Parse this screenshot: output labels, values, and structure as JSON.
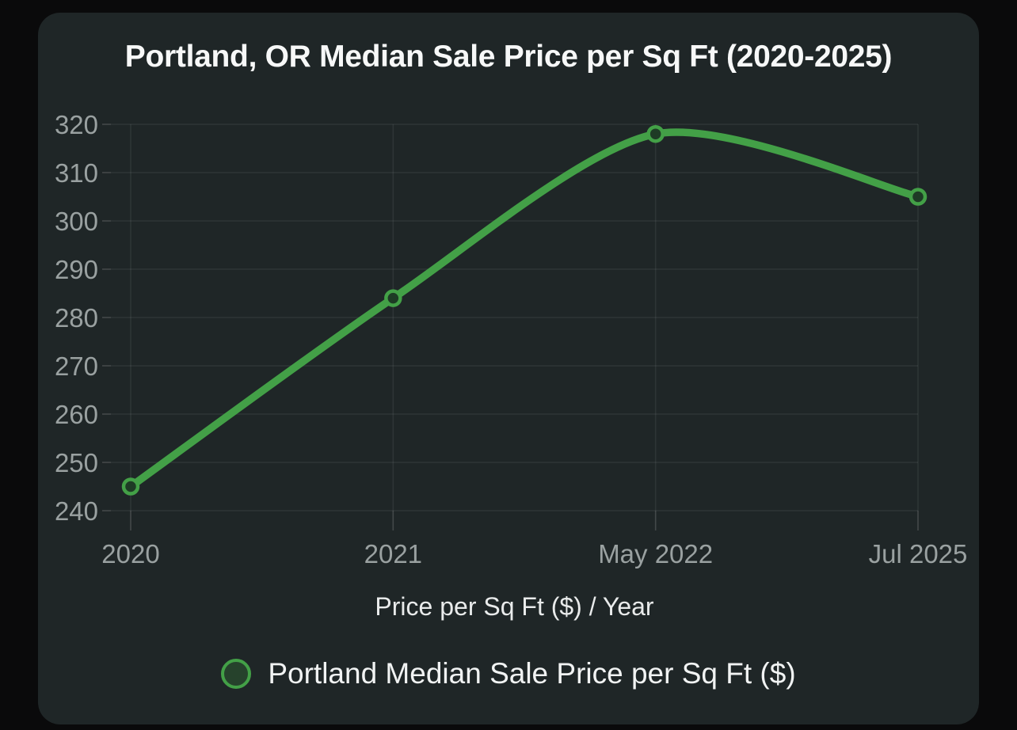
{
  "window": {
    "background": "#0a0a0b"
  },
  "card": {
    "background": "#1f2627"
  },
  "chart_data": {
    "type": "line",
    "title": "Portland, OR Median Sale Price per Sq Ft (2020-2025)",
    "xlabel": "Price per Sq Ft ($) / Year",
    "ylabel": "",
    "categories": [
      "2020",
      "2021",
      "May 2022",
      "Jul 2025"
    ],
    "series": [
      {
        "name": "Portland Median Sale Price per Sq Ft ($)",
        "color": "#43a047",
        "values": [
          245,
          284,
          318,
          305
        ]
      }
    ],
    "ylim": [
      240,
      320
    ],
    "yticks": [
      240,
      250,
      260,
      270,
      280,
      290,
      300,
      310,
      320
    ],
    "grid": true,
    "smooth": true,
    "marker_style": "open-circle",
    "legend_position": "bottom"
  },
  "colors": {
    "page_background": "#0a0a0b",
    "card_background": "#1f2627",
    "gridline": "rgba(255,255,255,0.07)",
    "tick_mark": "rgba(255,255,255,0.16)",
    "tick_label": "#9aa1a1",
    "title_text": "#f7f8f8",
    "axis_title_text": "#e9ebeb",
    "legend_text": "#f1f3f3",
    "series_green": "#43a047",
    "marker_fill": "#1e3b25",
    "legend_marker_fill": "#26422c"
  }
}
